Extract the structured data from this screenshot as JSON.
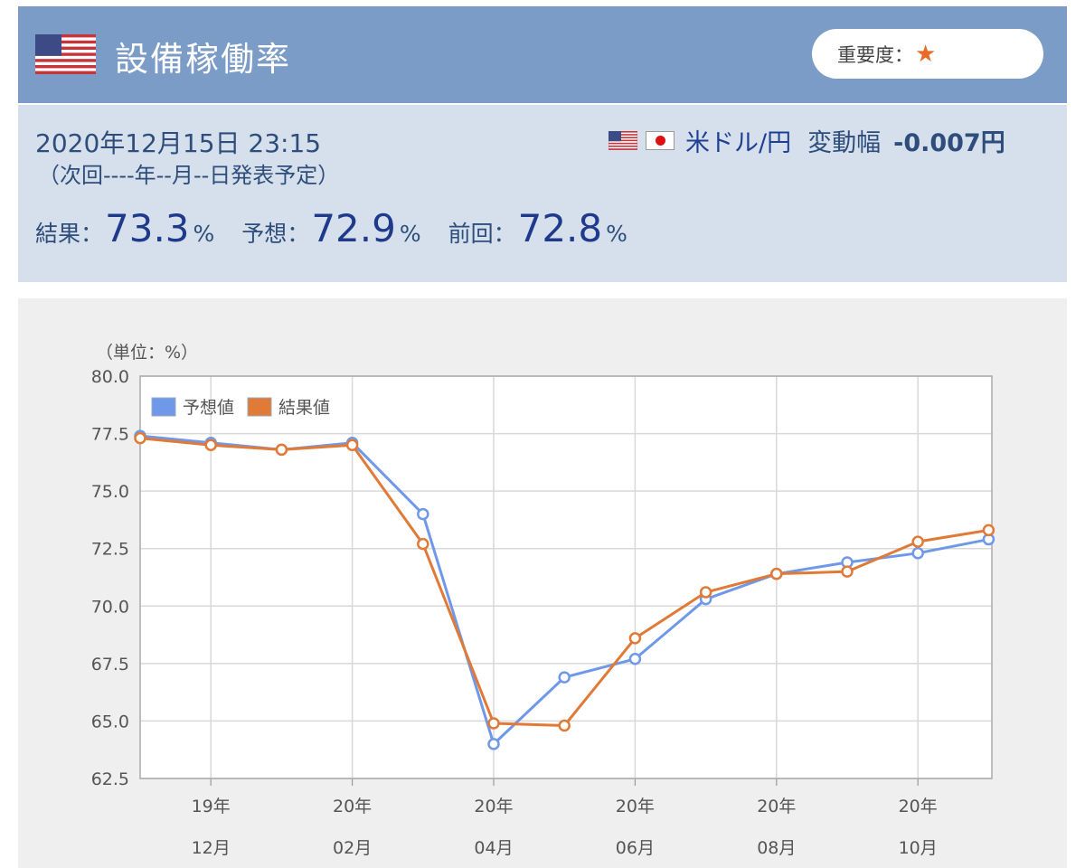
{
  "header": {
    "title": "設備稼働率",
    "importance_label": "重要度：",
    "importance_star": "★",
    "flag_icon": "us-flag-icon"
  },
  "info": {
    "datetime": "2020年12月15日 23:15",
    "next_release": "（次回----年--月--日発表予定）",
    "pair": "米ドル/円",
    "range_label": "変動幅",
    "range_value": "-0.007円",
    "result_label": "結果：",
    "result_value": "73.3",
    "forecast_label": "予想：",
    "forecast_value": "72.9",
    "previous_label": "前回：",
    "previous_value": "72.8",
    "unit": "%"
  },
  "chart_data": {
    "type": "line",
    "unit_label": "（単位：%）",
    "ylim": [
      62.5,
      80.0
    ],
    "yticks": [
      "80.0",
      "77.5",
      "75.0",
      "72.5",
      "70.0",
      "67.5",
      "65.0",
      "62.5"
    ],
    "x_labels": [
      {
        "year": "19年",
        "month": "12月"
      },
      {
        "year": "20年",
        "month": "02月"
      },
      {
        "year": "20年",
        "month": "04月"
      },
      {
        "year": "20年",
        "month": "06月"
      },
      {
        "year": "20年",
        "month": "08月"
      },
      {
        "year": "20年",
        "month": "10月"
      }
    ],
    "grid": true,
    "legend_position": "top-left",
    "series": [
      {
        "name": "予想値",
        "color": "#6f98e8",
        "values": [
          77.4,
          77.1,
          76.8,
          77.1,
          74.0,
          64.0,
          66.9,
          67.7,
          70.3,
          71.4,
          71.9,
          72.3,
          72.9
        ]
      },
      {
        "name": "結果値",
        "color": "#e07a36",
        "values": [
          77.3,
          77.0,
          76.8,
          77.0,
          72.7,
          64.9,
          64.8,
          68.6,
          70.6,
          71.4,
          71.5,
          72.8,
          73.3
        ]
      }
    ]
  }
}
